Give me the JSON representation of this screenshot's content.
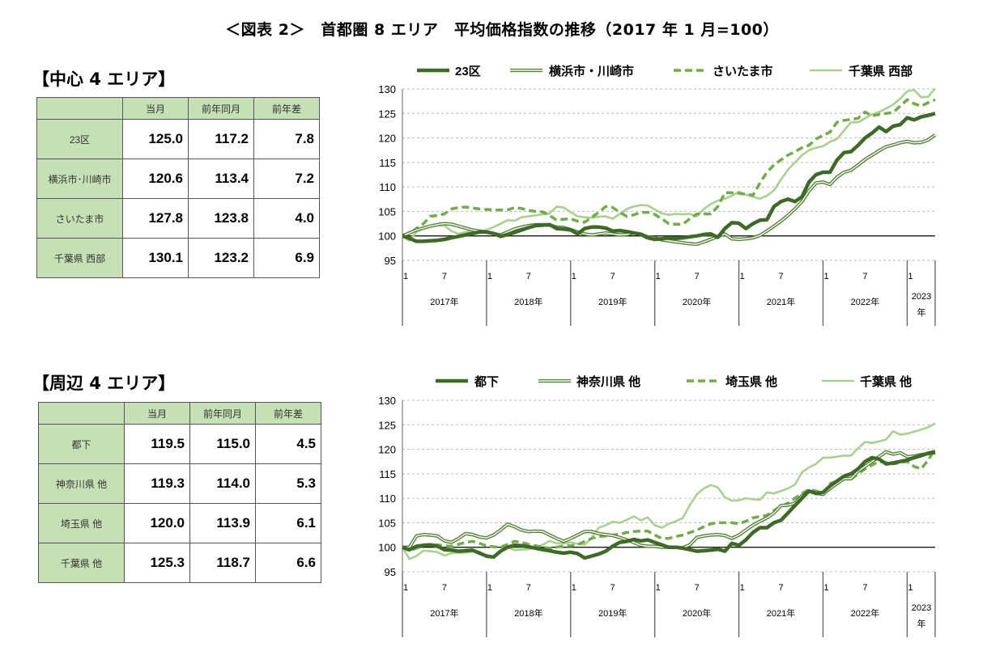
{
  "title": "＜図表 2＞　首都圏 8 エリア　平均価格指数の推移（2017 年 1 月=100）",
  "colors": {
    "dark": "#3d6b26",
    "double": "#548235",
    "dashed": "#70ad47",
    "light": "#a9d18e",
    "table_header": "#c5e0b4"
  },
  "sections": [
    {
      "heading": "【中心 4 エリア】",
      "table": {
        "headers": [
          "",
          "当月",
          "前年同月",
          "前年差"
        ],
        "rows": [
          {
            "name": "23区",
            "current": "125.0",
            "prev_year": "117.2",
            "diff": "7.8"
          },
          {
            "name": "横浜市･川崎市",
            "current": "120.6",
            "prev_year": "113.4",
            "diff": "7.2"
          },
          {
            "name": "さいたま市",
            "current": "127.8",
            "prev_year": "123.8",
            "diff": "4.0"
          },
          {
            "name": "千葉県 西部",
            "current": "130.1",
            "prev_year": "123.2",
            "diff": "6.9"
          }
        ]
      }
    },
    {
      "heading": "【周辺 4 エリア】",
      "table": {
        "headers": [
          "",
          "当月",
          "前年同月",
          "前年差"
        ],
        "rows": [
          {
            "name": "都下",
            "current": "119.5",
            "prev_year": "115.0",
            "diff": "4.5"
          },
          {
            "name": "神奈川県 他",
            "current": "119.3",
            "prev_year": "114.0",
            "diff": "5.3"
          },
          {
            "name": "埼玉県 他",
            "current": "120.0",
            "prev_year": "113.9",
            "diff": "6.1"
          },
          {
            "name": "千葉県 他",
            "current": "125.3",
            "prev_year": "118.7",
            "diff": "6.6"
          }
        ]
      }
    }
  ],
  "chart_data": [
    {
      "type": "line",
      "x_start": "2017-01",
      "x_end": "2023-05",
      "x_interval": "month",
      "month_tick_labels": [
        "1",
        "7"
      ],
      "year_labels": [
        "2017年",
        "2018年",
        "2019年",
        "2020年",
        "2021年",
        "2022年",
        "2023年"
      ],
      "ylim": [
        95,
        130
      ],
      "yticks": [
        95,
        100,
        105,
        110,
        115,
        120,
        125,
        130
      ],
      "grid": true,
      "reference_line": 100,
      "legend": "top",
      "series": [
        {
          "name": "23区",
          "style": "dark",
          "values": [
            100,
            99.5,
            98.9,
            98.9,
            99.0,
            99.1,
            99.3,
            99.6,
            99.9,
            100.2,
            100.5,
            100.8,
            100.8,
            100.5,
            99.9,
            100.3,
            100.7,
            101.2,
            101.7,
            102.1,
            102.2,
            102.3,
            101.5,
            101.4,
            101.2,
            100.4,
            101.5,
            101.8,
            101.8,
            101.6,
            101.0,
            101.1,
            100.9,
            100.6,
            100.3,
            99.6,
            99.3,
            99.4,
            99.6,
            99.5,
            99.6,
            99.8,
            100.0,
            100.3,
            100.4,
            99.7,
            101.5,
            102.7,
            102.6,
            101.5,
            102.5,
            103.2,
            103.3,
            106.0,
            107.0,
            107.5,
            107.0,
            108.0,
            111.0,
            112.5,
            113.0,
            113.0,
            115.5,
            117.0,
            117.2,
            118.5,
            120.0,
            121.0,
            122.2,
            121.3,
            122.4,
            122.7,
            124.1,
            123.7,
            124.3,
            124.6,
            125.0
          ]
        },
        {
          "name": "横浜市・川崎市",
          "style": "double",
          "values": [
            100,
            100.6,
            101.2,
            101.6,
            102,
            102.3,
            102.5,
            102.4,
            102,
            101.6,
            101.2,
            101,
            100.8,
            100.5,
            100.2,
            100.8,
            101.4,
            101.8,
            102.1,
            102.3,
            102.3,
            102.2,
            101.8,
            101.7,
            101.3,
            100.8,
            100.4,
            100.2,
            100.4,
            100.6,
            100.4,
            100.2,
            100.3,
            100.6,
            100.4,
            99.8,
            99.6,
            99.2,
            99.0,
            98.8,
            98.6,
            98.4,
            98.3,
            98.8,
            99.3,
            99.9,
            100.4,
            99.4,
            99.3,
            99.4,
            99.6,
            100.1,
            101.0,
            102.0,
            103.0,
            104.2,
            105.5,
            107.0,
            109.2,
            110.8,
            111.0,
            110.5,
            112.0,
            113.0,
            113.4,
            114.5,
            115.6,
            116.5,
            117.4,
            118.2,
            118.6,
            119.0,
            119.3,
            119.0,
            119.1,
            119.6,
            120.6
          ]
        },
        {
          "name": "さいたま市",
          "style": "dashed",
          "values": [
            100,
            100.5,
            101.5,
            102.5,
            104,
            104.2,
            104.5,
            105.5,
            105.8,
            105.9,
            105.7,
            105.5,
            105.4,
            105.3,
            105.3,
            105.3,
            105.8,
            105.6,
            105.2,
            105,
            104.9,
            104.2,
            103.2,
            103.4,
            103.5,
            103.0,
            102.8,
            103.8,
            104.8,
            106.0,
            105.8,
            104.8,
            104.0,
            104.3,
            104.8,
            104.8,
            104.4,
            103.5,
            102.5,
            102.4,
            102.4,
            103.5,
            104.5,
            104.5,
            104.5,
            106.0,
            108.8,
            108.8,
            108.7,
            108.5,
            108.3,
            110.8,
            113.0,
            114.5,
            115.5,
            116.5,
            117.2,
            118.0,
            118.5,
            119.8,
            120.5,
            121.2,
            123.2,
            123.6,
            123.8,
            124.0,
            125.3,
            124.5,
            124.8,
            125.0,
            125.2,
            126.5,
            127.8,
            127.0,
            126.5,
            127.2,
            127.8
          ]
        },
        {
          "name": "千葉県 西部",
          "style": "light",
          "values": [
            100,
            99,
            100.8,
            101.5,
            102,
            102.2,
            102.1,
            101,
            100.4,
            100.8,
            101,
            100.8,
            101.2,
            101.8,
            102.5,
            103.2,
            103.1,
            103.8,
            104,
            104.2,
            104.4,
            104.6,
            106,
            105.8,
            104.8,
            104,
            103.8,
            103.7,
            103.9,
            104,
            103.5,
            104.5,
            105.5,
            106,
            106.3,
            106.2,
            105.4,
            104.6,
            104.3,
            104.5,
            104.4,
            104.5,
            104.0,
            105.5,
            106.5,
            107.2,
            107.6,
            108.2,
            109.0,
            108.4,
            108.0,
            107.6,
            108.2,
            109.3,
            111.5,
            113.5,
            115.0,
            116.5,
            117.5,
            118.0,
            118.3,
            119.2,
            119.8,
            121.5,
            123.2,
            123.2,
            124.0,
            124.8,
            125.3,
            126.0,
            126.8,
            128.0,
            129.5,
            129.8,
            128.3,
            128.4,
            130.1
          ]
        }
      ]
    },
    {
      "type": "line",
      "x_start": "2017-01",
      "x_end": "2023-05",
      "x_interval": "month",
      "month_tick_labels": [
        "1",
        "7"
      ],
      "year_labels": [
        "2017年",
        "2018年",
        "2019年",
        "2020年",
        "2021年",
        "2022年",
        "2023年"
      ],
      "ylim": [
        95,
        130
      ],
      "yticks": [
        95,
        100,
        105,
        110,
        115,
        120,
        125,
        130
      ],
      "grid": true,
      "reference_line": 100,
      "legend": "top",
      "series": [
        {
          "name": "都下",
          "style": "dark",
          "values": [
            100,
            99.5,
            100.2,
            100.4,
            100.5,
            100.2,
            99.5,
            99.4,
            99.2,
            99.3,
            99.4,
            98.8,
            98.2,
            98.0,
            99.2,
            100.0,
            100.4,
            100.3,
            100.1,
            99.8,
            99.5,
            99.3,
            99.0,
            98.8,
            99.0,
            98.7,
            97.8,
            98.2,
            98.6,
            99.2,
            100.2,
            101.0,
            101.2,
            101.6,
            101.3,
            101.5,
            101.0,
            100.5,
            100.0,
            100.0,
            99.8,
            99.5,
            99.2,
            99.3,
            99.4,
            99.6,
            99.2,
            100.8,
            100.4,
            101.5,
            103.0,
            104.0,
            104.0,
            105.0,
            105.5,
            107.0,
            108.5,
            110.0,
            111.5,
            111.0,
            111.2,
            112.5,
            113.5,
            114.5,
            115.0,
            116.0,
            117.5,
            118.3,
            118.0,
            117.0,
            117.2,
            117.5,
            117.8,
            118.3,
            118.7,
            119.2,
            119.5
          ]
        },
        {
          "name": "神奈川県 他",
          "style": "double",
          "values": [
            100,
            100,
            102.3,
            102.6,
            102.5,
            102.3,
            101.3,
            101,
            101.8,
            102.8,
            102.6,
            102.1,
            101.9,
            102.5,
            103.5,
            104.7,
            104.2,
            103.5,
            103.2,
            103.3,
            103.2,
            102.5,
            101.8,
            101.2,
            101.8,
            102.5,
            103.2,
            103.2,
            102.8,
            102.6,
            102.4,
            102.0,
            101.5,
            101.0,
            100.4,
            100.2,
            100.2,
            100.0,
            100.0,
            100.0,
            99.9,
            100.5,
            102.0,
            102.3,
            102.5,
            102.6,
            102.4,
            101.8,
            102.5,
            103.5,
            104.5,
            105.3,
            106.0,
            107.0,
            108.5,
            108.6,
            109.0,
            110.5,
            111.5,
            111.0,
            110.8,
            112.0,
            113.0,
            114.0,
            114.0,
            115.5,
            116.5,
            117.5,
            118.5,
            119.5,
            119.0,
            119.3,
            118.5,
            118.6,
            118.9,
            119.1,
            119.3
          ]
        },
        {
          "name": "埼玉県 他",
          "style": "dashed",
          "values": [
            100,
            99.3,
            99.8,
            100.3,
            100.5,
            100.5,
            100.3,
            100.2,
            100.6,
            101,
            101.2,
            100.8,
            100.3,
            100.1,
            100,
            100.6,
            101.2,
            101,
            100.6,
            100.3,
            100,
            99.8,
            100,
            100.3,
            100.3,
            100.5,
            101.2,
            101.8,
            102.2,
            102.3,
            102.5,
            102.7,
            103,
            103.2,
            103.3,
            103.3,
            102.5,
            101.8,
            101.8,
            102.2,
            102.5,
            103,
            103.5,
            104.2,
            104.8,
            105,
            105,
            105,
            104.8,
            105.3,
            106,
            106.3,
            106.5,
            107.5,
            108.3,
            109,
            110,
            111,
            111.8,
            111.5,
            111,
            113,
            113.5,
            113.9,
            113.9,
            115,
            116,
            116.8,
            117.5,
            117.3,
            117,
            117.3,
            117.5,
            116.5,
            116,
            117.8,
            120
          ]
        },
        {
          "name": "千葉県 他",
          "style": "light",
          "values": [
            100,
            97.6,
            98.2,
            99.3,
            99.2,
            99,
            98.3,
            98.8,
            98.9,
            98.9,
            99.1,
            99.1,
            98,
            97.9,
            99,
            100,
            99.4,
            99.5,
            99.6,
            100,
            100.5,
            101.3,
            100.8,
            100.8,
            101,
            100.7,
            100.5,
            102,
            104,
            104.5,
            105.2,
            105,
            105.6,
            106.3,
            105.5,
            106.1,
            104.5,
            104,
            104.8,
            105.3,
            106,
            108.6,
            110.8,
            112,
            112.7,
            112.2,
            110.2,
            109.5,
            109.6,
            110,
            109.8,
            109.7,
            111.2,
            111,
            111.5,
            112,
            112.8,
            115.3,
            116.3,
            117,
            118.3,
            118.3,
            118.5,
            118.7,
            118.7,
            120.2,
            121.5,
            121.3,
            121.6,
            122,
            123.7,
            123,
            123.2,
            123.6,
            124,
            124.5,
            125.3
          ]
        }
      ]
    }
  ]
}
